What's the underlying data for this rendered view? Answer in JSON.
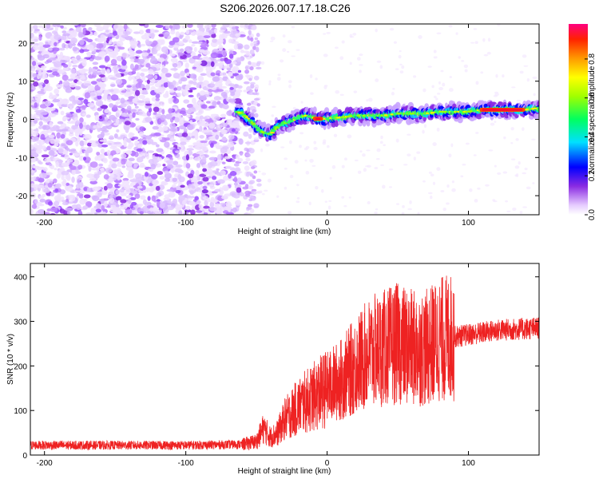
{
  "title": "S206.2026.007.17.18.C26",
  "chart_data": [
    {
      "type": "heatmap",
      "name": "spectrogram",
      "xlabel": "Height of straight line (km)",
      "ylabel": "Frequency (Hz)",
      "xlim": [
        -210,
        150
      ],
      "ylim": [
        -25,
        25
      ],
      "xticks": [
        -200,
        -100,
        0,
        100
      ],
      "xtick_labels": [
        "-200",
        "-100",
        "0",
        "100"
      ],
      "yticks": [
        -20,
        -10,
        0,
        10,
        20
      ],
      "ytick_labels": [
        "-20",
        "-10",
        "0",
        "10",
        "20"
      ],
      "noise_region_km": [
        -210,
        -60
      ],
      "ridge": {
        "x": [
          -64,
          -60,
          -55,
          -50,
          -45,
          -40,
          -35,
          -30,
          -25,
          -20,
          -15,
          -10,
          -5,
          0,
          10,
          20,
          30,
          40,
          50,
          60,
          70,
          80,
          90,
          100,
          110,
          120,
          130,
          140,
          150
        ],
        "y": [
          2,
          1.5,
          0,
          -2,
          -3.5,
          -4,
          -2,
          -1,
          -0.5,
          0.5,
          1,
          0.5,
          0,
          0.2,
          0.5,
          1,
          1,
          1,
          1.5,
          1.5,
          1.5,
          2,
          2,
          2,
          2.5,
          2.5,
          2.5,
          2.5,
          3
        ]
      },
      "colorbar": {
        "label": "Normalized spectral amplitude",
        "range": [
          0,
          0.98
        ],
        "ticks": [
          0.0,
          0.2,
          0.4,
          0.6,
          0.8
        ],
        "tick_labels": [
          "0.0",
          "0.2",
          "0.4",
          "0.6",
          "0.8"
        ]
      }
    },
    {
      "type": "line",
      "name": "snr",
      "xlabel": "Height of straight line (km)",
      "ylabel": "SNR (10 * v/v)",
      "xlim": [
        -210,
        150
      ],
      "ylim": [
        0,
        430
      ],
      "xticks": [
        -200,
        -100,
        0,
        100
      ],
      "xtick_labels": [
        "-200",
        "-100",
        "0",
        "100"
      ],
      "yticks": [
        0,
        100,
        200,
        300,
        400
      ],
      "ytick_labels": [
        "0",
        "100",
        "200",
        "300",
        "400"
      ],
      "series": [
        {
          "name": "SNR",
          "color": "#ee2222",
          "x": [
            -210,
            -150,
            -100,
            -60,
            -50,
            -45,
            -40,
            -35,
            -30,
            -20,
            -10,
            0,
            10,
            20,
            30,
            40,
            50,
            60,
            70,
            80,
            90,
            100,
            120,
            150
          ],
          "y": [
            22,
            22,
            22,
            24,
            30,
            60,
            40,
            50,
            80,
            110,
            130,
            150,
            170,
            200,
            230,
            240,
            250,
            240,
            240,
            260,
            265,
            270,
            280,
            285
          ]
        }
      ]
    }
  ]
}
